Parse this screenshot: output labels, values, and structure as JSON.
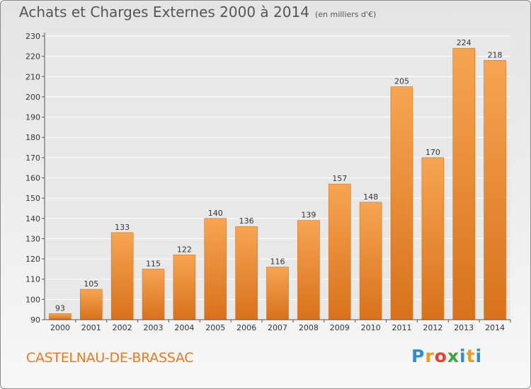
{
  "title": "Achats et Charges Externes 2000 à 2014",
  "unit": "(en milliers d'€)",
  "commune": "CASTELNAU-DE-BRASSAC",
  "brand": {
    "letters": [
      "P",
      "r",
      "o",
      "x",
      "i",
      "t",
      "i"
    ],
    "colors": [
      "#2b8fd6",
      "#f39a1e",
      "#e93f2b",
      "#3aa63a",
      "#2b8fd6",
      "#f39a1e",
      "#2b8fd6"
    ]
  },
  "colors": {
    "bar": "#ee8a2e",
    "bar_light": "#f6a552",
    "bar_dark": "#d9711b",
    "grid": "#ffffff",
    "text": "#333333"
  },
  "chart_data": {
    "type": "bar",
    "categories": [
      "2000",
      "2001",
      "2002",
      "2003",
      "2004",
      "2005",
      "2006",
      "2007",
      "2008",
      "2009",
      "2010",
      "2011",
      "2012",
      "2013",
      "2014"
    ],
    "values": [
      93,
      105,
      133,
      115,
      122,
      140,
      136,
      116,
      139,
      157,
      148,
      205,
      170,
      224,
      218
    ],
    "ylim": [
      90,
      230
    ],
    "yticks": [
      90,
      100,
      110,
      120,
      130,
      140,
      150,
      160,
      170,
      180,
      190,
      200,
      210,
      220,
      230
    ],
    "grid": true,
    "data_labels": true
  }
}
